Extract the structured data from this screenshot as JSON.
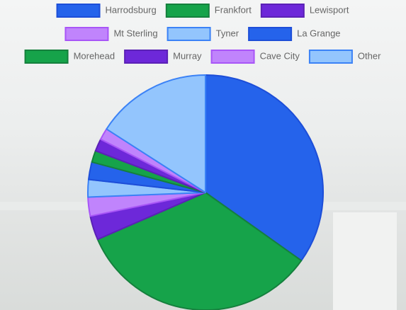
{
  "chart_data": {
    "type": "pie",
    "categories": [
      "Harrodsburg",
      "Frankfort",
      "Lewisport",
      "Mt Sterling",
      "Tyner",
      "La Grange",
      "Morehead",
      "Murray",
      "Cave City",
      "Other"
    ],
    "values": [
      34.8,
      33.6,
      3.3,
      2.6,
      2.4,
      2.4,
      1.6,
      1.7,
      1.6,
      15.9
    ],
    "colors": [
      "#2563eb",
      "#16a34a",
      "#6d28d9",
      "#c084fc",
      "#93c5fd",
      "#2563eb",
      "#16a34a",
      "#6d28d9",
      "#c084fc",
      "#93c5fd"
    ],
    "border_colors": [
      "#1d4ed8",
      "#15803d",
      "#5b21b6",
      "#a855f7",
      "#3b82f6",
      "#1d4ed8",
      "#15803d",
      "#5b21b6",
      "#a855f7",
      "#3b82f6"
    ],
    "legend": "top"
  }
}
